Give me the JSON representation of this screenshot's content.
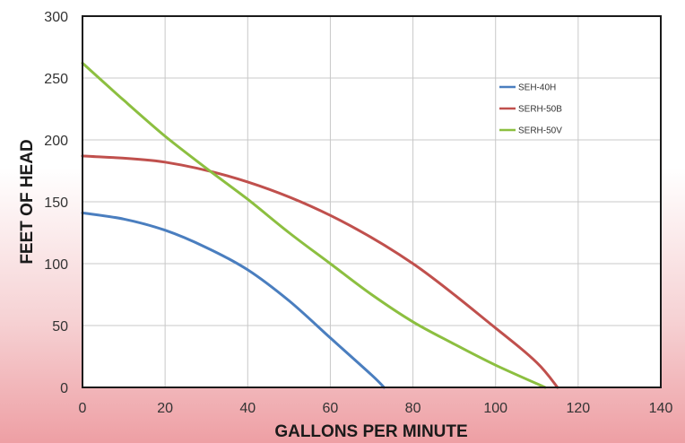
{
  "chart_data": {
    "type": "line",
    "title": "",
    "xlabel": "GALLONS PER MINUTE",
    "ylabel": "FEET OF HEAD",
    "xlim": [
      0,
      140
    ],
    "ylim": [
      0,
      300
    ],
    "xticks": [
      0,
      20,
      40,
      60,
      80,
      100,
      120,
      140
    ],
    "yticks": [
      0,
      50,
      100,
      150,
      200,
      250,
      300
    ],
    "grid": true,
    "legend": "top-right",
    "series": [
      {
        "name": "SEH-40H",
        "color": "#4a7ebf",
        "x": [
          0,
          10,
          20,
          30,
          40,
          50,
          60,
          70,
          73
        ],
        "y": [
          141,
          136,
          127,
          113,
          95,
          70,
          40,
          10,
          0
        ]
      },
      {
        "name": "SERH-50B",
        "color": "#c0504d",
        "x": [
          0,
          20,
          40,
          60,
          80,
          100,
          110,
          115
        ],
        "y": [
          187,
          182,
          166,
          139,
          100,
          48,
          20,
          0
        ]
      },
      {
        "name": "SERH-50V",
        "color": "#8cbf40",
        "x": [
          0,
          10,
          20,
          30,
          40,
          50,
          60,
          70,
          80,
          90,
          100,
          112
        ],
        "y": [
          262,
          232,
          203,
          177,
          152,
          125,
          100,
          75,
          53,
          35,
          18,
          0
        ]
      }
    ]
  }
}
